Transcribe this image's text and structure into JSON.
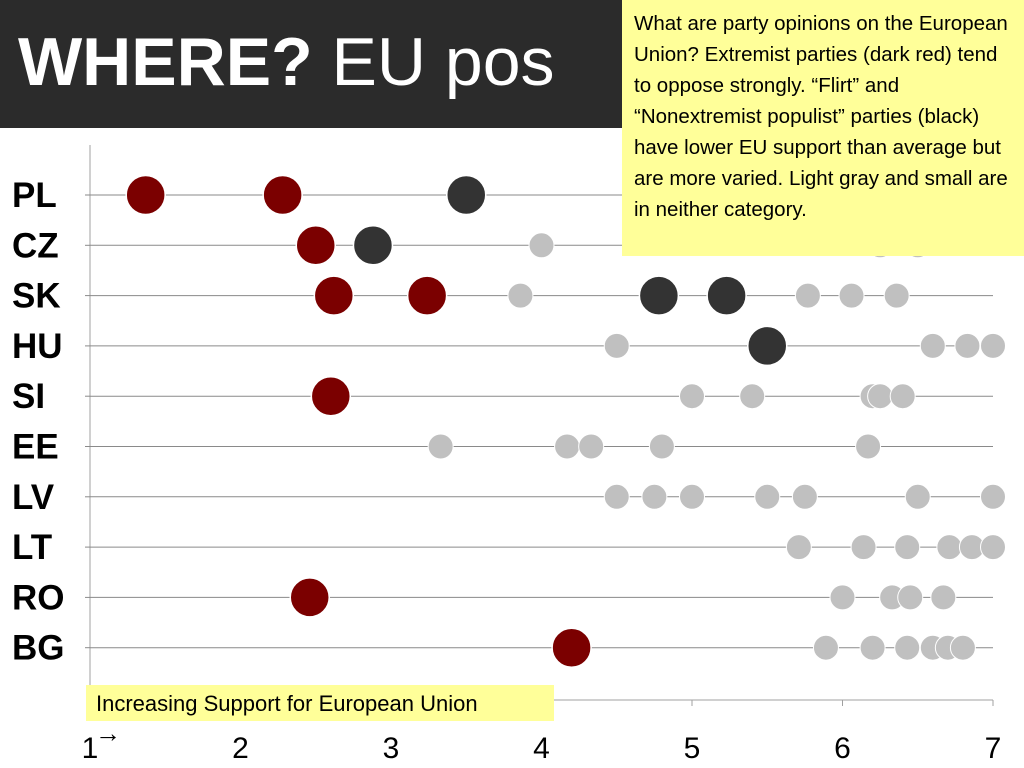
{
  "slide": {
    "title_bold": "WHERE?",
    "title_rest": " EU pos",
    "callout": "What are party opinions on the European Union?  Extremist parties (dark red) tend to oppose strongly.  “Flirt” and “Nonextremist populist” parties (black) have lower EU support than average but are more varied.  Light gray and small are in neither category.",
    "axis_caption": "Increasing Support for European Union",
    "arrow": "→"
  },
  "colors": {
    "title_bg": "#2b2b2b",
    "callout_bg": "#ffff99",
    "extremist": "#7b0000",
    "populist": "#333333",
    "other": "#c0c0c0"
  },
  "chart_data": {
    "type": "scatter",
    "title": "",
    "xlabel": "Increasing Support for European Union",
    "xlim": [
      1,
      7
    ],
    "xticks": [
      "1",
      "2",
      "3",
      "4",
      "5",
      "6",
      "7"
    ],
    "categories": [
      "PL",
      "CZ",
      "SK",
      "HU",
      "SI",
      "EE",
      "LV",
      "LT",
      "RO",
      "BG"
    ],
    "grid": "horizontal",
    "series": [
      {
        "key": "extremist",
        "points": [
          {
            "country": "PL",
            "x": 1.37
          },
          {
            "country": "PL",
            "x": 2.28
          },
          {
            "country": "CZ",
            "x": 2.5
          },
          {
            "country": "SK",
            "x": 2.62
          },
          {
            "country": "SK",
            "x": 3.24
          },
          {
            "country": "SI",
            "x": 2.6
          },
          {
            "country": "RO",
            "x": 2.46
          },
          {
            "country": "BG",
            "x": 4.2
          }
        ]
      },
      {
        "key": "populist",
        "points": [
          {
            "country": "PL",
            "x": 3.5
          },
          {
            "country": "CZ",
            "x": 2.88
          },
          {
            "country": "SK",
            "x": 4.78
          },
          {
            "country": "SK",
            "x": 5.23
          },
          {
            "country": "HU",
            "x": 5.5
          }
        ]
      },
      {
        "key": "other",
        "points": [
          {
            "country": "CZ",
            "x": 4.0
          },
          {
            "country": "CZ",
            "x": 6.25
          },
          {
            "country": "CZ",
            "x": 6.5
          },
          {
            "country": "SK",
            "x": 3.86
          },
          {
            "country": "SK",
            "x": 5.77
          },
          {
            "country": "SK",
            "x": 6.06
          },
          {
            "country": "SK",
            "x": 6.36
          },
          {
            "country": "HU",
            "x": 4.5
          },
          {
            "country": "HU",
            "x": 6.6
          },
          {
            "country": "HU",
            "x": 6.83
          },
          {
            "country": "HU",
            "x": 7.0
          },
          {
            "country": "SI",
            "x": 5.0
          },
          {
            "country": "SI",
            "x": 5.4
          },
          {
            "country": "SI",
            "x": 6.2
          },
          {
            "country": "SI",
            "x": 6.25
          },
          {
            "country": "SI",
            "x": 6.4
          },
          {
            "country": "EE",
            "x": 3.33
          },
          {
            "country": "EE",
            "x": 4.17
          },
          {
            "country": "EE",
            "x": 4.33
          },
          {
            "country": "EE",
            "x": 4.8
          },
          {
            "country": "EE",
            "x": 6.17
          },
          {
            "country": "LV",
            "x": 4.5
          },
          {
            "country": "LV",
            "x": 4.75
          },
          {
            "country": "LV",
            "x": 5.0
          },
          {
            "country": "LV",
            "x": 5.5
          },
          {
            "country": "LV",
            "x": 5.75
          },
          {
            "country": "LV",
            "x": 6.5
          },
          {
            "country": "LV",
            "x": 7.0
          },
          {
            "country": "LT",
            "x": 5.71
          },
          {
            "country": "LT",
            "x": 6.14
          },
          {
            "country": "LT",
            "x": 6.43
          },
          {
            "country": "LT",
            "x": 6.71
          },
          {
            "country": "LT",
            "x": 6.86
          },
          {
            "country": "LT",
            "x": 7.0
          },
          {
            "country": "RO",
            "x": 6.0
          },
          {
            "country": "RO",
            "x": 6.33
          },
          {
            "country": "RO",
            "x": 6.45
          },
          {
            "country": "RO",
            "x": 6.67
          },
          {
            "country": "BG",
            "x": 5.89
          },
          {
            "country": "BG",
            "x": 6.2
          },
          {
            "country": "BG",
            "x": 6.43
          },
          {
            "country": "BG",
            "x": 6.6
          },
          {
            "country": "BG",
            "x": 6.7
          },
          {
            "country": "BG",
            "x": 6.8
          }
        ]
      }
    ]
  }
}
